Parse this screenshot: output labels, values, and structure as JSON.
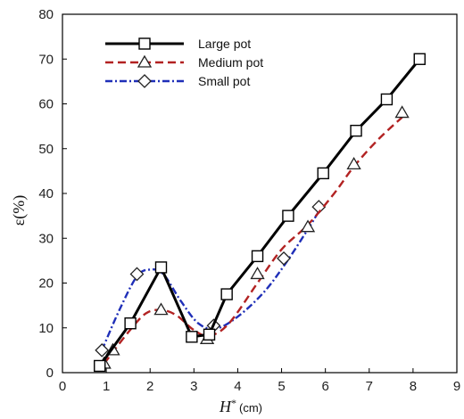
{
  "chart_data": {
    "type": "line",
    "xlabel": "H* (cm)",
    "ylabel": "ε(%)",
    "xlabel_parts": {
      "symbol": "H",
      "sup": "*",
      "unit": "(cm)"
    },
    "xlim": [
      0,
      9
    ],
    "ylim": [
      0,
      80
    ],
    "x_ticks": [
      "0",
      "1",
      "2",
      "3",
      "4",
      "5",
      "6",
      "7",
      "8",
      "9"
    ],
    "y_ticks": [
      "0",
      "10",
      "20",
      "30",
      "40",
      "50",
      "60",
      "70",
      "80"
    ],
    "grid": false,
    "legend_position": "top-left",
    "series": [
      {
        "name": "Large pot",
        "color": "#000000",
        "line_style": "solid",
        "marker": "square",
        "points": [
          [
            0.85,
            1.5
          ],
          [
            1.55,
            11
          ],
          [
            2.25,
            23.5
          ],
          [
            2.95,
            8
          ],
          [
            3.35,
            8.5
          ],
          [
            3.75,
            17.5
          ],
          [
            4.45,
            26
          ],
          [
            5.15,
            35
          ],
          [
            5.95,
            44.5
          ],
          [
            6.7,
            54
          ],
          [
            7.4,
            61
          ],
          [
            8.15,
            70
          ]
        ]
      },
      {
        "name": "Medium pot",
        "color": "#b22222",
        "line_style": "dashed",
        "marker": "triangle",
        "points": [
          [
            0.95,
            2
          ],
          [
            1.15,
            5
          ],
          [
            2.25,
            14
          ],
          [
            3.3,
            7.5
          ],
          [
            4.45,
            22
          ],
          [
            5.6,
            32.5
          ],
          [
            6.65,
            46.5
          ],
          [
            7.75,
            58
          ]
        ]
      },
      {
        "name": "Small pot",
        "color": "#1f2fb8",
        "line_style": "dashdot",
        "marker": "diamond",
        "points": [
          [
            0.9,
            5
          ],
          [
            1.7,
            22
          ],
          [
            3.45,
            10.5
          ],
          [
            5.05,
            25.5
          ],
          [
            5.85,
            37
          ]
        ]
      }
    ],
    "series_curves": {
      "Medium pot": [
        [
          0.95,
          2
        ],
        [
          1.5,
          9
        ],
        [
          1.9,
          13.2
        ],
        [
          2.25,
          14
        ],
        [
          2.6,
          12.8
        ],
        [
          3.0,
          9.5
        ],
        [
          3.35,
          8.2
        ],
        [
          3.8,
          11
        ],
        [
          4.45,
          20
        ],
        [
          5.0,
          27.5
        ],
        [
          5.6,
          33
        ],
        [
          6.2,
          40
        ],
        [
          6.65,
          46
        ],
        [
          7.2,
          52
        ],
        [
          7.75,
          57
        ]
      ],
      "Small pot": [
        [
          0.9,
          5
        ],
        [
          1.3,
          14
        ],
        [
          1.7,
          21.5
        ],
        [
          2.0,
          23
        ],
        [
          2.3,
          22
        ],
        [
          2.7,
          16
        ],
        [
          3.1,
          11
        ],
        [
          3.5,
          9.8
        ],
        [
          4.0,
          12.5
        ],
        [
          4.6,
          18
        ],
        [
          5.1,
          24.5
        ],
        [
          5.6,
          32
        ],
        [
          5.85,
          36
        ]
      ]
    }
  }
}
